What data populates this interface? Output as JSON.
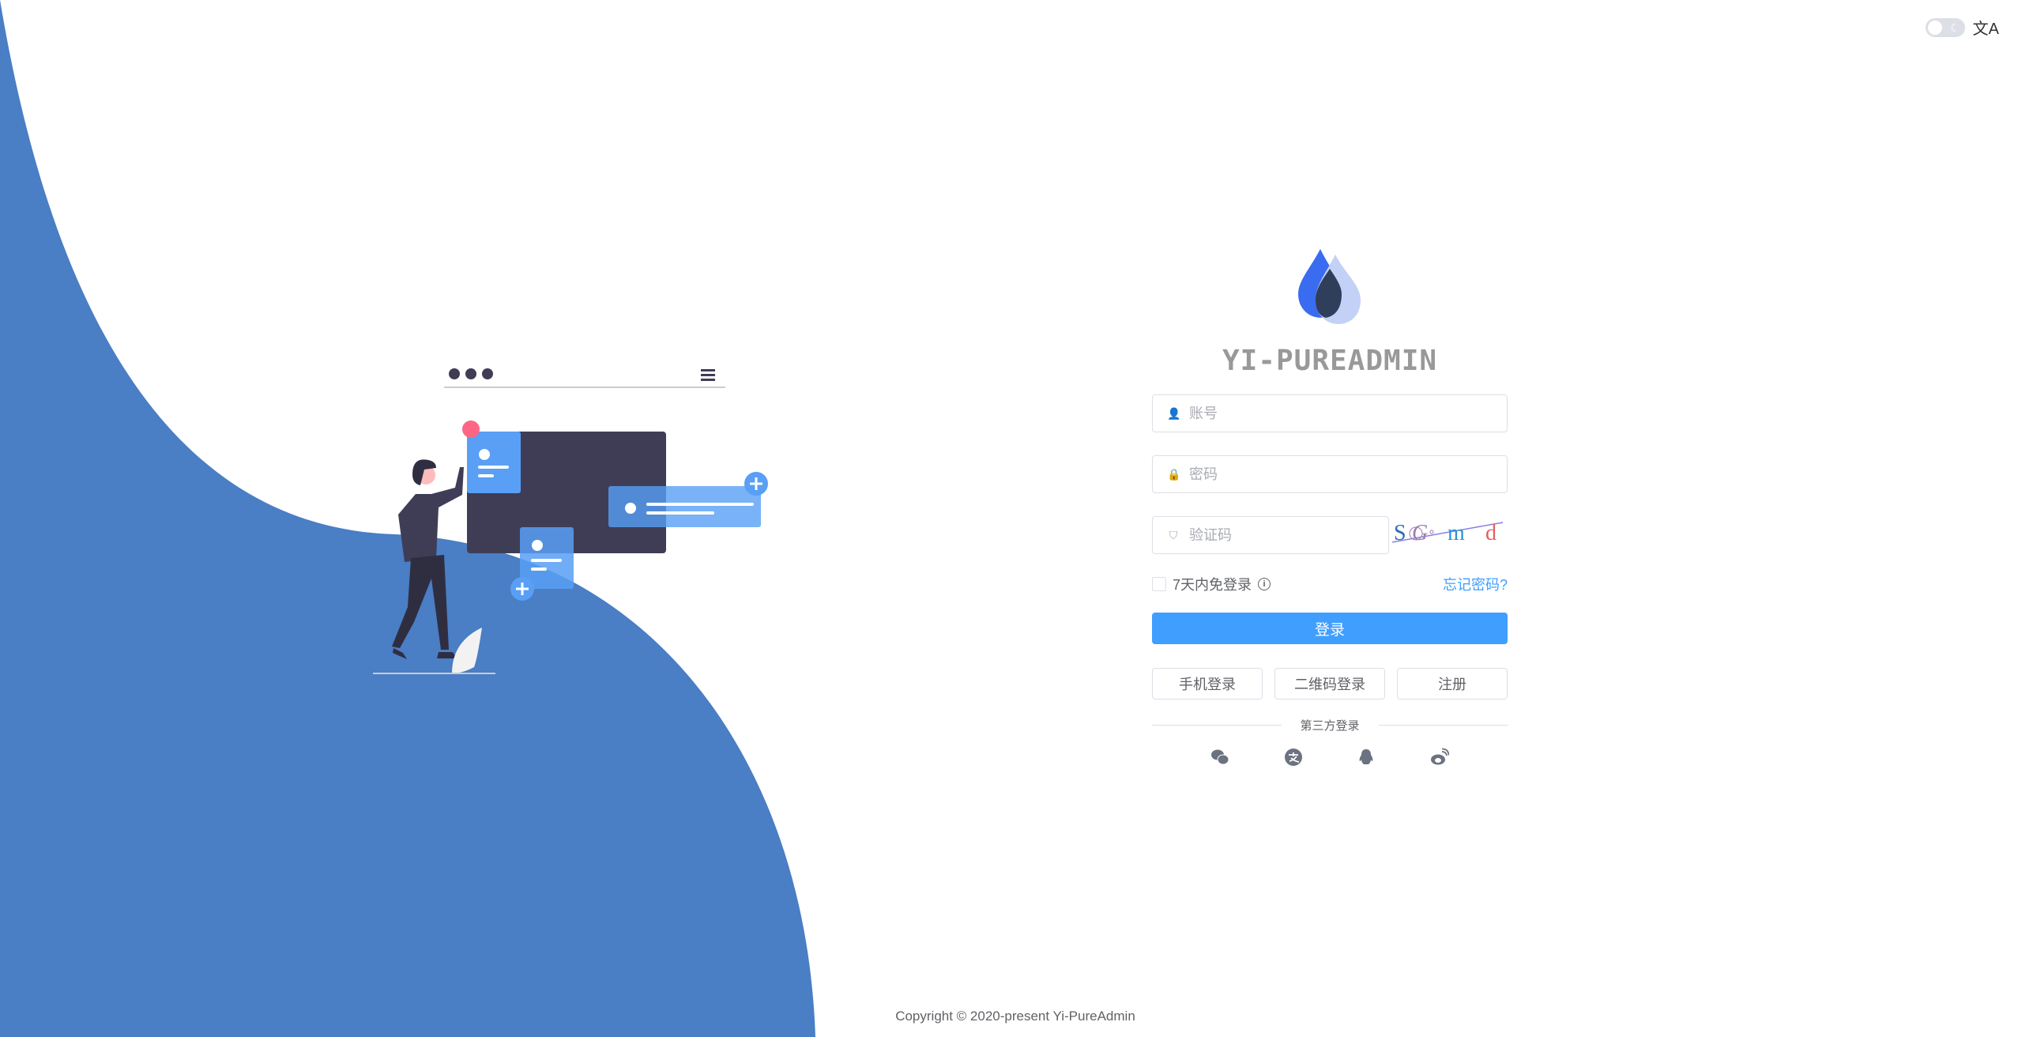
{
  "header": {
    "theme_toggle": "dark-mode-toggle",
    "language_icon": "translate-icon"
  },
  "brand": {
    "title": "YI-PUREADMIN"
  },
  "form": {
    "username_placeholder": "账号",
    "username_value": "",
    "password_placeholder": "密码",
    "password_value": "",
    "captcha_placeholder": "验证码",
    "captcha_value": "",
    "captcha_chars": [
      "S",
      "G",
      "m",
      "d"
    ],
    "remember_label": "7天内免登录",
    "remember_checked": false,
    "forgot_label": "忘记密码?",
    "login_label": "登录",
    "phone_login_label": "手机登录",
    "qr_login_label": "二维码登录",
    "register_label": "注册",
    "third_party_label": "第三方登录",
    "social": [
      "wechat",
      "alipay",
      "qq",
      "weibo"
    ]
  },
  "colors": {
    "primary": "#409eff",
    "wave": "#4a7ec5",
    "dark": "#3f3d56"
  },
  "footer": {
    "copyright": "Copyright © 2020-present Yi-PureAdmin"
  }
}
